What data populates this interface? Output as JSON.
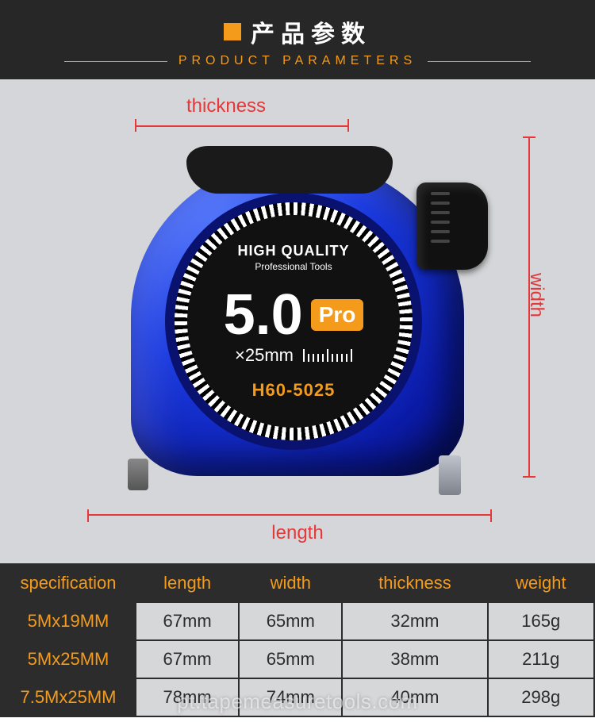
{
  "header": {
    "title_zh": "产品参数",
    "title_en": "PRODUCT PARAMETERS",
    "accent_color": "#f49b1b",
    "bg_color": "#272727"
  },
  "dimensions": {
    "thickness_label": "thickness",
    "width_label": "width",
    "length_label": "length",
    "arrow_color": "#e63838"
  },
  "product_face": {
    "hq_line1": "HIGH QUALITY",
    "hq_line2": "Professional Tools",
    "big_number": "5.0",
    "pro_badge": "Pro",
    "sub_size": "×25mm",
    "model": "H60-5025",
    "shell_color": "#1a3ae0",
    "badge_color": "#f49b1b"
  },
  "spec_table": {
    "columns": [
      "specification",
      "length",
      "width",
      "thickness",
      "weight"
    ],
    "header_color": "#f49b1b",
    "header_bg": "#2c2c2c",
    "cell_bg": "#d6d7d9",
    "cell_color": "#2c2c2c",
    "rows": [
      {
        "spec": "5Mx19MM",
        "length": "67mm",
        "width": "65mm",
        "thickness": "32mm",
        "weight": "165g"
      },
      {
        "spec": "5Mx25MM",
        "length": "67mm",
        "width": "65mm",
        "thickness": "38mm",
        "weight": "211g"
      },
      {
        "spec": "7.5Mx25MM",
        "length": "78mm",
        "width": "74mm",
        "thickness": "40mm",
        "weight": "298g"
      }
    ]
  },
  "watermark": "pt.tapemeasuretools.com"
}
